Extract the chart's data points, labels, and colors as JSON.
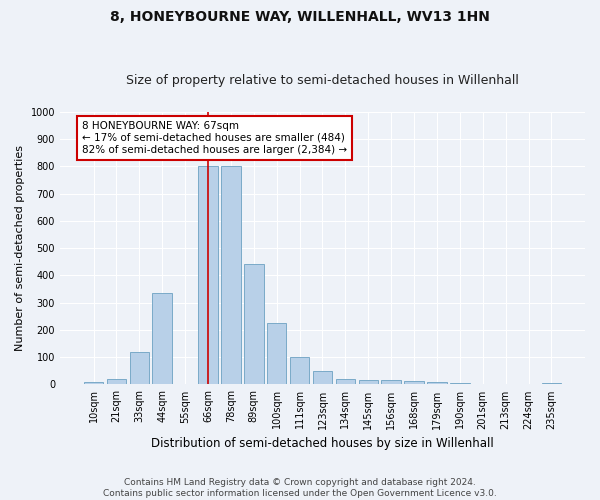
{
  "title": "8, HONEYBOURNE WAY, WILLENHALL, WV13 1HN",
  "subtitle": "Size of property relative to semi-detached houses in Willenhall",
  "xlabel": "Distribution of semi-detached houses by size in Willenhall",
  "ylabel": "Number of semi-detached properties",
  "categories": [
    "10sqm",
    "21sqm",
    "33sqm",
    "44sqm",
    "55sqm",
    "66sqm",
    "78sqm",
    "89sqm",
    "100sqm",
    "111sqm",
    "123sqm",
    "134sqm",
    "145sqm",
    "156sqm",
    "168sqm",
    "179sqm",
    "190sqm",
    "201sqm",
    "213sqm",
    "224sqm",
    "235sqm"
  ],
  "values": [
    8,
    20,
    120,
    335,
    0,
    800,
    800,
    440,
    225,
    100,
    48,
    20,
    18,
    15,
    12,
    10,
    5,
    0,
    0,
    0,
    5
  ],
  "bar_color": "#b8d0e8",
  "bar_edge_color": "#7aaac8",
  "background_color": "#eef2f8",
  "grid_color": "#ffffff",
  "vline_x_index": 5,
  "vline_color": "#cc0000",
  "annotation_text": "8 HONEYBOURNE WAY: 67sqm\n← 17% of semi-detached houses are smaller (484)\n82% of semi-detached houses are larger (2,384) →",
  "annotation_box_color": "#ffffff",
  "annotation_box_edge": "#cc0000",
  "ylim": [
    0,
    1000
  ],
  "yticks": [
    0,
    100,
    200,
    300,
    400,
    500,
    600,
    700,
    800,
    900,
    1000
  ],
  "footer": "Contains HM Land Registry data © Crown copyright and database right 2024.\nContains public sector information licensed under the Open Government Licence v3.0.",
  "title_fontsize": 10,
  "subtitle_fontsize": 9,
  "xlabel_fontsize": 8.5,
  "ylabel_fontsize": 8,
  "tick_fontsize": 7,
  "annotation_fontsize": 7.5,
  "footer_fontsize": 6.5
}
